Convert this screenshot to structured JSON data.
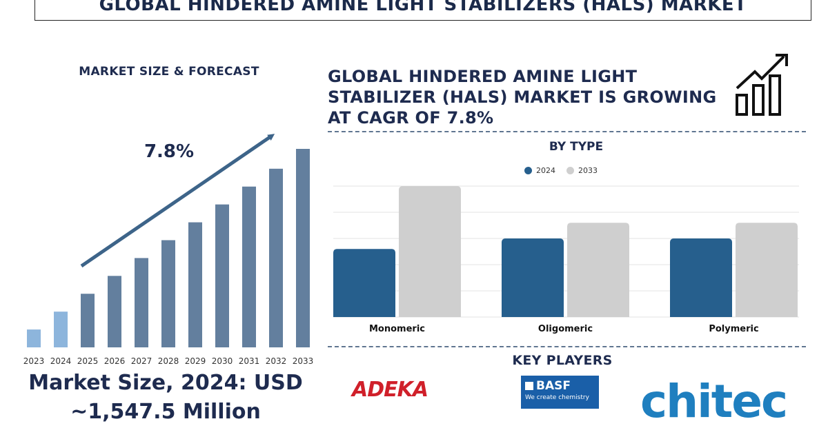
{
  "title": "GLOBAL HINDERED AMINE LIGHT STABILIZERS (HALS) MARKET",
  "left_heading": "MARKET SIZE & FORECAST",
  "cagr_label": "7.8%",
  "market_size_line1": "Market Size, 2024: USD",
  "market_size_line2": "~1,547.5 Million",
  "right_heading_lines": [
    "GLOBAL HINDERED AMINE LIGHT",
    "STABILIZER (HALS) MARKET IS GROWING",
    "AT CAGR OF 7.8%"
  ],
  "by_type_label": "BY TYPE",
  "key_players_label": "KEY PLAYERS",
  "logos": {
    "adeka": "ADEKA",
    "basf": "BASF",
    "basf_tagline": "We create chemistry",
    "chitec": "chitec"
  },
  "colors": {
    "navy": "#1e2b4f",
    "bar_dark": "#637f9e",
    "bar_light": "#8db5dc",
    "series_2024": "#265f8d",
    "series_2033": "#cfcfcf",
    "arrow": "#3d6489"
  },
  "chart_data": [
    {
      "type": "bar",
      "title": "MARKET SIZE & FORECAST",
      "categories": [
        "2023",
        "2024",
        "2025",
        "2026",
        "2027",
        "2028",
        "2029",
        "2030",
        "2031",
        "2032",
        "2033"
      ],
      "values": [
        9,
        18,
        27,
        36,
        45,
        54,
        63,
        72,
        81,
        90,
        100
      ],
      "highlight_categories": [
        "2023",
        "2024"
      ],
      "annotation": "7.8%",
      "xlabel": "",
      "ylabel": "",
      "ylim": [
        0,
        100
      ],
      "grid": false
    },
    {
      "type": "bar",
      "title": "BY TYPE",
      "categories": [
        "Monomeric",
        "Oligomeric",
        "Polymeric"
      ],
      "series": [
        {
          "name": "2024",
          "values": [
            52,
            60,
            60
          ]
        },
        {
          "name": "2033",
          "values": [
            100,
            72,
            72
          ]
        }
      ],
      "ylim": [
        0,
        100
      ],
      "grid": true,
      "legend": "top-center"
    }
  ]
}
